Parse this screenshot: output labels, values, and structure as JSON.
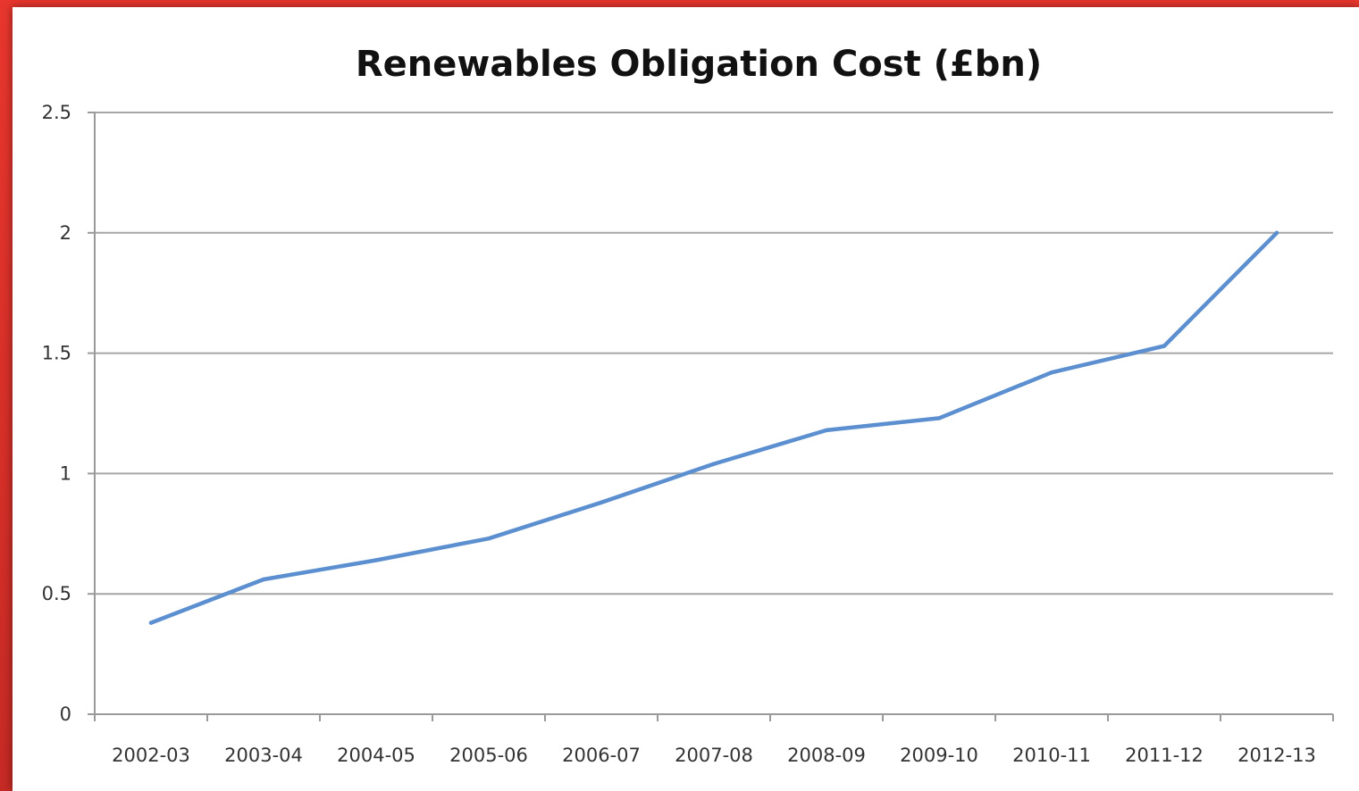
{
  "colors": {
    "page_background": "#d8302a",
    "chart_background": "#ffffff",
    "series_line": "#5b8fcf",
    "gridline": "#a6a6a6",
    "axis": "#9a9a9a",
    "text": "#333333"
  },
  "chart_data": {
    "type": "line",
    "title": "Renewables Obligation Cost (£bn)",
    "xlabel": "",
    "ylabel": "",
    "categories": [
      "2002-03",
      "2003-04",
      "2004-05",
      "2005-06",
      "2006-07",
      "2007-08",
      "2008-09",
      "2009-10",
      "2010-11",
      "2011-12",
      "2012-13"
    ],
    "series": [
      {
        "values": [
          0.38,
          0.56,
          0.64,
          0.73,
          0.88,
          1.04,
          1.18,
          1.23,
          1.42,
          1.53,
          2.0
        ]
      }
    ],
    "ylim": [
      0,
      2.5
    ],
    "yticks": [
      "0",
      "0.5",
      "1",
      "1.5",
      "2",
      "2.5"
    ],
    "grid": true,
    "legend": "none"
  }
}
